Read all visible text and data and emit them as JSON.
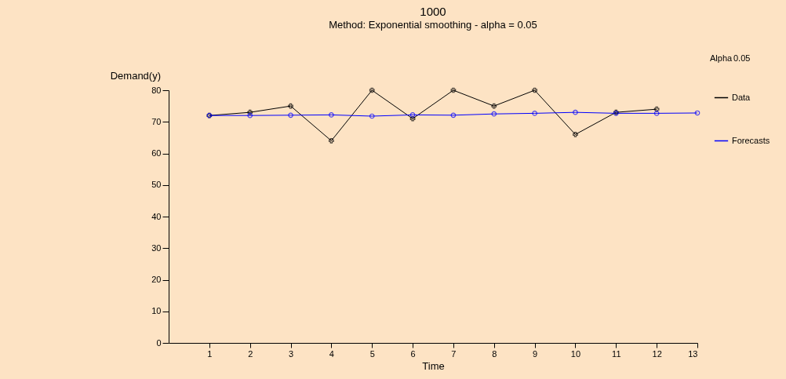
{
  "chart_data": {
    "type": "line",
    "title": "1000",
    "subtitle": "Method: Exponential smoothing - alpha = 0.05",
    "xlabel": "Time",
    "ylabel": "Demand(y)",
    "series": [
      {
        "name": "Data",
        "color": "#000000",
        "marker": "cross",
        "x": [
          1,
          2,
          3,
          4,
          5,
          6,
          7,
          8,
          9,
          10,
          11,
          12
        ],
        "values": [
          72,
          73,
          75,
          64,
          80,
          71,
          80,
          75,
          80,
          66,
          73,
          74
        ]
      },
      {
        "name": "Forecasts",
        "color": "#0000ff",
        "marker": "circle",
        "x": [
          1,
          2,
          3,
          4,
          5,
          6,
          7,
          8,
          9,
          10,
          11,
          12,
          13
        ],
        "values": [
          72,
          72,
          72.1,
          72.2,
          71.8,
          72.2,
          72.1,
          72.5,
          72.7,
          73.0,
          72.7,
          72.7,
          72.8
        ]
      }
    ],
    "xlim": [
      0,
      13
    ],
    "xticks": [
      1,
      2,
      3,
      4,
      5,
      6,
      7,
      8,
      9,
      10,
      11,
      12,
      13
    ],
    "ylim": [
      0,
      80
    ],
    "yticks": [
      0,
      10,
      20,
      30,
      40,
      50,
      60,
      70,
      80
    ],
    "grid": false,
    "legend": "right",
    "line_style": "solid",
    "annotations": [
      "Alpha",
      "0.05"
    ]
  }
}
